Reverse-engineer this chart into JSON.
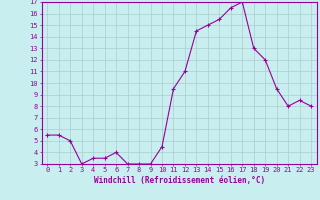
{
  "x": [
    0,
    1,
    2,
    3,
    4,
    5,
    6,
    7,
    8,
    9,
    10,
    11,
    12,
    13,
    14,
    15,
    16,
    17,
    18,
    19,
    20,
    21,
    22,
    23
  ],
  "y": [
    5.5,
    5.5,
    5.0,
    3.0,
    3.5,
    3.5,
    4.0,
    3.0,
    3.0,
    3.0,
    4.5,
    9.5,
    11.0,
    14.5,
    15.0,
    15.5,
    16.5,
    17.0,
    13.0,
    12.0,
    9.5,
    8.0,
    8.5,
    8.0
  ],
  "line_color": "#990099",
  "marker": "+",
  "marker_size": 3.5,
  "bg_color": "#c8eef0",
  "grid_color": "#aacccc",
  "xlabel": "Windchill (Refroidissement éolien,°C)",
  "ylabel": "",
  "xlim": [
    -0.5,
    23.5
  ],
  "ylim": [
    3,
    17
  ],
  "yticks": [
    3,
    4,
    5,
    6,
    7,
    8,
    9,
    10,
    11,
    12,
    13,
    14,
    15,
    16,
    17
  ],
  "xticks": [
    0,
    1,
    2,
    3,
    4,
    5,
    6,
    7,
    8,
    9,
    10,
    11,
    12,
    13,
    14,
    15,
    16,
    17,
    18,
    19,
    20,
    21,
    22,
    23
  ],
  "tick_color": "#990099",
  "label_color": "#990099",
  "spine_color": "#990099",
  "xlabel_fontsize": 5.5,
  "tick_fontsize": 5.0
}
